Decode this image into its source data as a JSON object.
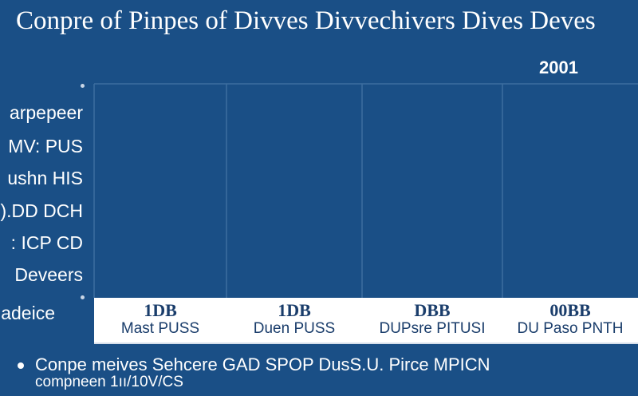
{
  "chart_data": {
    "type": "table",
    "title": "Conpre of Pinpes of Divves Divvechivers Dives Deves",
    "year_label": "2001",
    "row_labels": [
      "arpepeer",
      "MV: PUS",
      "ushn HIS",
      ").DD DCH",
      ": ICP CD",
      "Deveers",
      "adeice"
    ],
    "columns": [
      {
        "value": "1DB",
        "name": "Mast PUSS"
      },
      {
        "value": "1DB",
        "name": "Duen PUSS"
      },
      {
        "value": "DBB",
        "name": "DUPsre PITUSI"
      },
      {
        "value": "00BB",
        "name": "DU Paso PNTH"
      }
    ],
    "grid": true
  },
  "footnote": {
    "line1": "Conpe meives Sehcere GAD SPOP DusS.U. Pirce MPICN",
    "line2": "compneen 1ıı/10V/CS"
  },
  "colors": {
    "background": "#1a4f86",
    "grid": "#3d6e9f",
    "strip": "#ffffff",
    "strip_text": "#1a3d6b"
  }
}
